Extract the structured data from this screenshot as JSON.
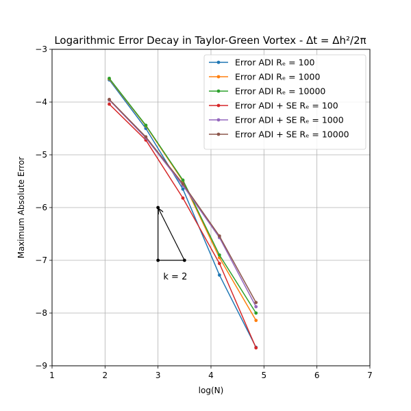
{
  "chart_data": {
    "type": "line",
    "title": "Logarithmic Error Decay in Taylor-Green Vortex - Δt = Δh²/2π",
    "xlabel": "log(N)",
    "ylabel": "Maximum Absolute Error",
    "xlim": [
      1,
      7
    ],
    "ylim": [
      -9,
      -3
    ],
    "xticks": [
      1,
      2,
      3,
      4,
      5,
      6,
      7
    ],
    "yticks": [
      -9,
      -8,
      -7,
      -6,
      -5,
      -4,
      -3
    ],
    "xtick_labels": [
      "1",
      "2",
      "3",
      "4",
      "5",
      "6",
      "7"
    ],
    "ytick_labels": [
      "−9",
      "−8",
      "−7",
      "−6",
      "−5",
      "−4",
      "−3"
    ],
    "grid": true,
    "legend_position": "top-right",
    "x": [
      2.08,
      2.77,
      3.47,
      4.16,
      4.85
    ],
    "series": [
      {
        "name": "Error ADI Rₑ = 100",
        "color": "#1f77b4",
        "values": [
          -3.58,
          -4.5,
          -5.65,
          -7.28,
          -8.65
        ]
      },
      {
        "name": "Error ADI Rₑ = 1000",
        "color": "#ff7f0e",
        "values": [
          -3.56,
          -4.45,
          -5.5,
          -6.95,
          -8.14
        ]
      },
      {
        "name": "Error ADI Rₑ = 10000",
        "color": "#2ca02c",
        "values": [
          -3.55,
          -4.44,
          -5.48,
          -6.9,
          -8.0
        ]
      },
      {
        "name": "Error ADI + SE Rₑ = 100",
        "color": "#d62728",
        "values": [
          -4.04,
          -4.72,
          -5.82,
          -7.06,
          -8.66
        ]
      },
      {
        "name": "Error ADI + SE Rₑ = 1000",
        "color": "#9467bd",
        "values": [
          -3.96,
          -4.68,
          -5.58,
          -6.57,
          -7.88
        ]
      },
      {
        "name": "Error ADI + SE Rₑ = 10000",
        "color": "#8c564b",
        "values": [
          -3.95,
          -4.66,
          -5.55,
          -6.54,
          -7.8
        ]
      }
    ],
    "annotations": [
      {
        "text": "k = 2",
        "text_at": [
          3.1,
          -7.3
        ],
        "triangle": [
          [
            3.0,
            -6.0
          ],
          [
            3.0,
            -7.0
          ],
          [
            3.5,
            -7.0
          ]
        ],
        "arrow_from": [
          3.5,
          -7.0
        ],
        "arrow_to": [
          3.0,
          -6.0
        ],
        "color": "#000000"
      }
    ]
  }
}
